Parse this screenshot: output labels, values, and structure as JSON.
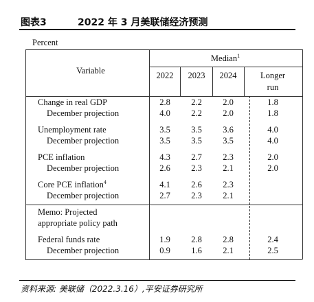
{
  "header": {
    "label": "图表3",
    "title": "2022 年 3 月美联储经济预测"
  },
  "table": {
    "unit": "Percent",
    "variable_header": "Variable",
    "median_header": "Median",
    "median_note": "1",
    "columns": [
      "2022",
      "2023",
      "2024",
      "Longer run"
    ],
    "rows": [
      {
        "label": "Change in real GDP",
        "values": [
          "2.8",
          "2.2",
          "2.0",
          "1.8"
        ]
      },
      {
        "label": "December projection",
        "values": [
          "4.0",
          "2.2",
          "2.0",
          "1.8"
        ]
      },
      {
        "label": "Unemployment rate",
        "values": [
          "3.5",
          "3.5",
          "3.6",
          "4.0"
        ]
      },
      {
        "label": "December projection",
        "values": [
          "3.5",
          "3.5",
          "3.5",
          "4.0"
        ]
      },
      {
        "label": "PCE inflation",
        "values": [
          "4.3",
          "2.7",
          "2.3",
          "2.0"
        ]
      },
      {
        "label": "December projection",
        "values": [
          "2.6",
          "2.3",
          "2.1",
          "2.0"
        ]
      },
      {
        "label": "Core PCE inflation",
        "note": "4",
        "values": [
          "4.1",
          "2.6",
          "2.3",
          null
        ]
      },
      {
        "label": "December projection",
        "values": [
          "2.7",
          "2.3",
          "2.1",
          null
        ]
      }
    ],
    "memo": [
      "Memo: Projected",
      "appropriate policy path"
    ],
    "policy_rows": [
      {
        "label": "Federal funds rate",
        "values": [
          "1.9",
          "2.8",
          "2.8",
          "2.4"
        ]
      },
      {
        "label": "December projection",
        "values": [
          "0.9",
          "1.6",
          "2.1",
          "2.5"
        ]
      }
    ]
  },
  "footer": {
    "source": "资料来源: 美联储（2022.3.16）,平安证券研究所"
  }
}
